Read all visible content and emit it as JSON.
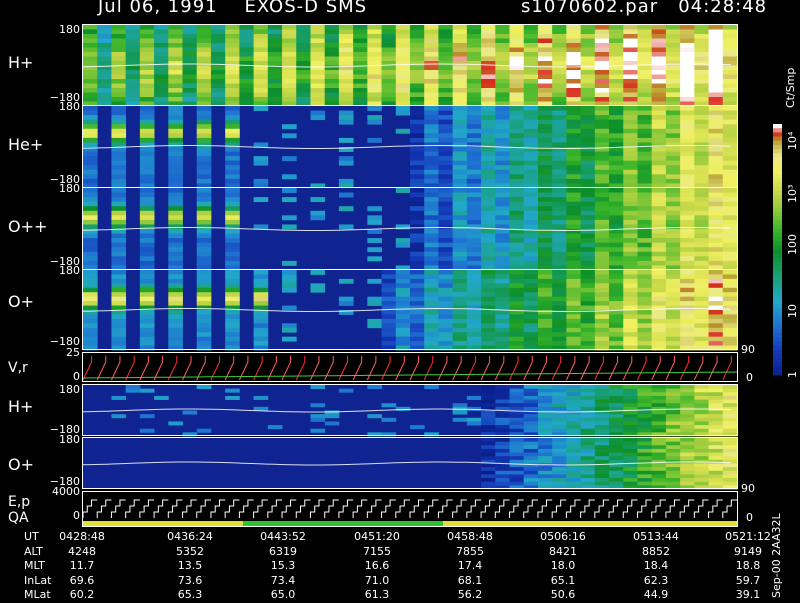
{
  "header": {
    "title": "Jul 06, 1991    EXOS-D SMS",
    "file_time": "s1070602.par   04:28:48"
  },
  "side_text": {
    "units": "Ct/Smp",
    "date": "Sep-00  2AA32L"
  },
  "colorbar": {
    "labels": [
      "10⁴",
      "10³",
      "100",
      "10",
      "1"
    ]
  },
  "panels": {
    "h_plus": {
      "label": "H+",
      "top_tick": "180",
      "bottom_tick": "−180"
    },
    "he_plus": {
      "label": "He+",
      "top_tick": "180",
      "bottom_tick": "−180"
    },
    "o_plusplus": {
      "label": "O++",
      "top_tick": "180",
      "bottom_tick": "−180"
    },
    "o_plus": {
      "label": "O+",
      "top_tick": "180",
      "bottom_tick": "−180",
      "right_tick": "90"
    },
    "vr": {
      "label": "V,r",
      "top_tick": "25",
      "bottom_tick": "0",
      "right_tick": "0"
    },
    "h_plus_2": {
      "label": "H+",
      "top_tick": "180",
      "bottom_tick": "−180"
    },
    "o_plus_2": {
      "label": "O+",
      "top_tick": "180",
      "bottom_tick": "−180",
      "right_tick": "90"
    },
    "ep": {
      "label": "E,p",
      "sub_label": "QA",
      "top_tick": "4000",
      "bottom_tick": "0",
      "right_tick": "0"
    }
  },
  "table": {
    "rows": [
      {
        "label": "UT",
        "values": [
          "0428:48",
          "0436:24",
          "0443:52",
          "0451:20",
          "0458:48",
          "0506:16",
          "0513:44",
          "0521:12"
        ]
      },
      {
        "label": "ALT",
        "values": [
          "4248",
          "5352",
          "6319",
          "7155",
          "7855",
          "8421",
          "8852",
          "9149"
        ]
      },
      {
        "label": "MLT",
        "values": [
          "11.7",
          "13.5",
          "15.3",
          "16.6",
          "17.4",
          "18.0",
          "18.4",
          "18.8"
        ]
      },
      {
        "label": "InLat",
        "values": [
          "69.6",
          "73.6",
          "73.4",
          "71.0",
          "68.1",
          "65.1",
          "62.3",
          "59.7"
        ]
      },
      {
        "label": "MLat",
        "values": [
          "60.2",
          "65.3",
          "65.0",
          "61.3",
          "56.2",
          "50.6",
          "44.9",
          "39.1"
        ]
      }
    ]
  },
  "chart_data": {
    "type": "heatmap",
    "title": "Jul 06, 1991    EXOS-D SMS",
    "colorbar_label": "Ct/Smp",
    "colorbar_ticks": [
      1,
      10,
      100,
      1000,
      10000
    ],
    "x_ticks": [
      "0428:48",
      "0436:24",
      "0443:52",
      "0451:20",
      "0458:48",
      "0506:16",
      "0513:44",
      "0521:12"
    ],
    "series": [
      {
        "name": "H+",
        "ylim": [
          -180,
          180
        ]
      },
      {
        "name": "He+",
        "ylim": [
          -180,
          180
        ]
      },
      {
        "name": "O++",
        "ylim": [
          -180,
          180
        ]
      },
      {
        "name": "O+",
        "ylim": [
          -180,
          180
        ]
      },
      {
        "name": "V,r",
        "ylim": [
          0,
          25
        ]
      },
      {
        "name": "H+",
        "ylim": [
          -180,
          180
        ]
      },
      {
        "name": "O+",
        "ylim": [
          -180,
          180
        ]
      },
      {
        "name": "E,p",
        "ylim": [
          0,
          4000
        ]
      }
    ]
  }
}
